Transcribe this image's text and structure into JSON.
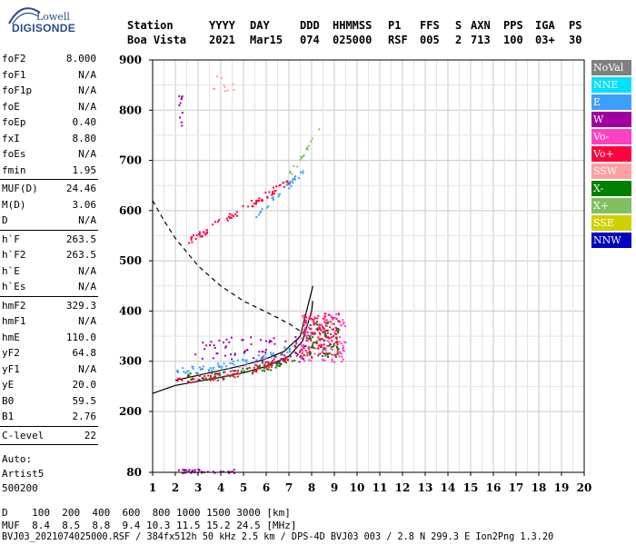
{
  "logo": {
    "line1": "Lowell",
    "line2": "DIGISONDE"
  },
  "header": {
    "labels": [
      "Station",
      "YYYY",
      "DAY",
      "DDD",
      "HHMMSS",
      "P1",
      "FFS",
      "S",
      "AXN",
      "PPS",
      "IGA",
      "PS"
    ],
    "values": [
      "Boa Vista",
      "2021",
      "Mar15",
      "074",
      "025000",
      "RSF",
      "005",
      "2",
      "713",
      "100",
      "03+",
      "30"
    ]
  },
  "params": {
    "group1": [
      {
        "label": "foF2",
        "value": "8.000"
      },
      {
        "label": "foF1",
        "value": "N/A"
      },
      {
        "label": "foF1p",
        "value": "N/A"
      },
      {
        "label": "foE",
        "value": "N/A"
      },
      {
        "label": "foEp",
        "value": "0.40"
      },
      {
        "label": "fxI",
        "value": "8.80"
      },
      {
        "label": "foEs",
        "value": "N/A"
      },
      {
        "label": "fmin",
        "value": "1.95"
      }
    ],
    "group2": [
      {
        "label": "MUF(D)",
        "value": "24.46"
      },
      {
        "label": "M(D)",
        "value": "3.06"
      },
      {
        "label": "D",
        "value": "N/A"
      }
    ],
    "group3": [
      {
        "label": "h`F",
        "value": "263.5"
      },
      {
        "label": "h`F2",
        "value": "263.5"
      },
      {
        "label": "h`E",
        "value": "N/A"
      },
      {
        "label": "h`Es",
        "value": "N/A"
      }
    ],
    "group4": [
      {
        "label": "hmF2",
        "value": "329.3"
      },
      {
        "label": "hmF1",
        "value": "N/A"
      },
      {
        "label": "hmE",
        "value": "110.0"
      },
      {
        "label": "yF2",
        "value": "64.8"
      },
      {
        "label": "yF1",
        "value": "N/A"
      },
      {
        "label": "yE",
        "value": "20.0"
      },
      {
        "label": "B0",
        "value": "59.5"
      },
      {
        "label": "B1",
        "value": "2.76"
      }
    ],
    "group5": [
      {
        "label": "C-level",
        "value": "22"
      }
    ],
    "auto": [
      "Auto:",
      "Artist5",
      "500200"
    ]
  },
  "legend": [
    {
      "label": "NoVal",
      "color": "#808080"
    },
    {
      "label": "NNE",
      "color": "#00e0ff"
    },
    {
      "label": "E",
      "color": "#3ca0ff"
    },
    {
      "label": "W",
      "color": "#a000a0"
    },
    {
      "label": "Vo-",
      "color": "#ff40c0"
    },
    {
      "label": "Vo+",
      "color": "#ff0040"
    },
    {
      "label": "SSW",
      "color": "#ffa0a0"
    },
    {
      "label": "X-",
      "color": "#008000"
    },
    {
      "label": "X+",
      "color": "#80c060"
    },
    {
      "label": "SSE",
      "color": "#d0d000"
    },
    {
      "label": "NNW",
      "color": "#0000c0"
    }
  ],
  "footer": {
    "line1": "D    100  200  400  600  800 1000 1500 3000 [km]",
    "line2": "MUF  8.4  8.5  8.8  9.4 10.3 11.5 15.2 24.5 [MHz]",
    "line3": "BVJ03_2021074025000.RSF / 384fx512h 50 kHz 2.5 km / DPS-4D BVJ03 003 / 2.8 N 299.3 E Ion2Png 1.3.20"
  },
  "chart_data": {
    "type": "scatter",
    "xlim": [
      1,
      20
    ],
    "ylim": [
      80,
      900
    ],
    "x_ticks": [
      "1",
      "2",
      "3",
      "4",
      "5",
      "6",
      "7",
      "8",
      "9",
      "10",
      "11",
      "12",
      "13",
      "14",
      "15",
      "16",
      "17",
      "18",
      "19",
      "20"
    ],
    "y_ticks": [
      "80",
      "200",
      "300",
      "400",
      "500",
      "600",
      "700",
      "800",
      "900"
    ],
    "grid": true,
    "lines": [
      {
        "style": "dashed",
        "points": [
          [
            1.0,
            620
          ],
          [
            1.5,
            580
          ],
          [
            2,
            545
          ],
          [
            3,
            490
          ],
          [
            4,
            450
          ],
          [
            5,
            420
          ],
          [
            6,
            398
          ],
          [
            7,
            375
          ],
          [
            7.5,
            360
          ]
        ]
      },
      {
        "style": "solid",
        "points": [
          [
            1.0,
            236
          ],
          [
            2,
            252
          ],
          [
            3,
            260
          ],
          [
            4,
            268
          ],
          [
            5,
            277
          ],
          [
            6,
            290
          ],
          [
            7,
            310
          ],
          [
            7.6,
            340
          ],
          [
            8,
            400
          ],
          [
            8.05,
            420
          ]
        ]
      },
      {
        "style": "solid",
        "points": [
          [
            2,
            262
          ],
          [
            3,
            272
          ],
          [
            4,
            282
          ],
          [
            5,
            292
          ],
          [
            6,
            305
          ],
          [
            6.8,
            320
          ],
          [
            7.5,
            350
          ],
          [
            8,
            440
          ],
          [
            8.05,
            450
          ]
        ]
      }
    ],
    "clusters": [
      {
        "color": "#ff0040",
        "n": 120,
        "x": [
          2.0,
          8.0
        ],
        "y": [
          265,
          330
        ],
        "trend": "up"
      },
      {
        "color": "#008000",
        "n": 60,
        "x": [
          2.4,
          7.6
        ],
        "y": [
          270,
          310
        ],
        "trend": "up"
      },
      {
        "color": "#3ca0ff",
        "n": 70,
        "x": [
          2.0,
          7.2
        ],
        "y": [
          285,
          330
        ],
        "trend": "up"
      },
      {
        "color": "#a000a0",
        "n": 70,
        "x": [
          2.8,
          7.8
        ],
        "y": [
          300,
          350
        ]
      },
      {
        "color": "#ff40c0",
        "n": 120,
        "x": [
          7.5,
          9.5
        ],
        "y": [
          300,
          400
        ]
      },
      {
        "color": "#ff0040",
        "n": 120,
        "x": [
          7.6,
          9.2
        ],
        "y": [
          310,
          400
        ]
      },
      {
        "color": "#008000",
        "n": 50,
        "x": [
          7.8,
          9.2
        ],
        "y": [
          310,
          380
        ]
      },
      {
        "color": "#ff0040",
        "n": 80,
        "x": [
          2.5,
          7.0
        ],
        "y": [
          540,
          660
        ],
        "trend": "diag"
      },
      {
        "color": "#3ca0ff",
        "n": 30,
        "x": [
          5.5,
          7.6
        ],
        "y": [
          590,
          680
        ],
        "trend": "diag"
      },
      {
        "color": "#80c060",
        "n": 20,
        "x": [
          6.5,
          8.3
        ],
        "y": [
          640,
          760
        ],
        "trend": "diag"
      },
      {
        "color": "#a000a0",
        "n": 40,
        "x": [
          2.0,
          4.6
        ],
        "y": [
          80,
          88
        ]
      },
      {
        "color": "#ffa0a0",
        "n": 10,
        "x": [
          3.5,
          4.6
        ],
        "y": [
          840,
          870
        ]
      },
      {
        "color": "#a000a0",
        "n": 10,
        "x": [
          2.1,
          2.3
        ],
        "y": [
          770,
          830
        ]
      }
    ]
  }
}
